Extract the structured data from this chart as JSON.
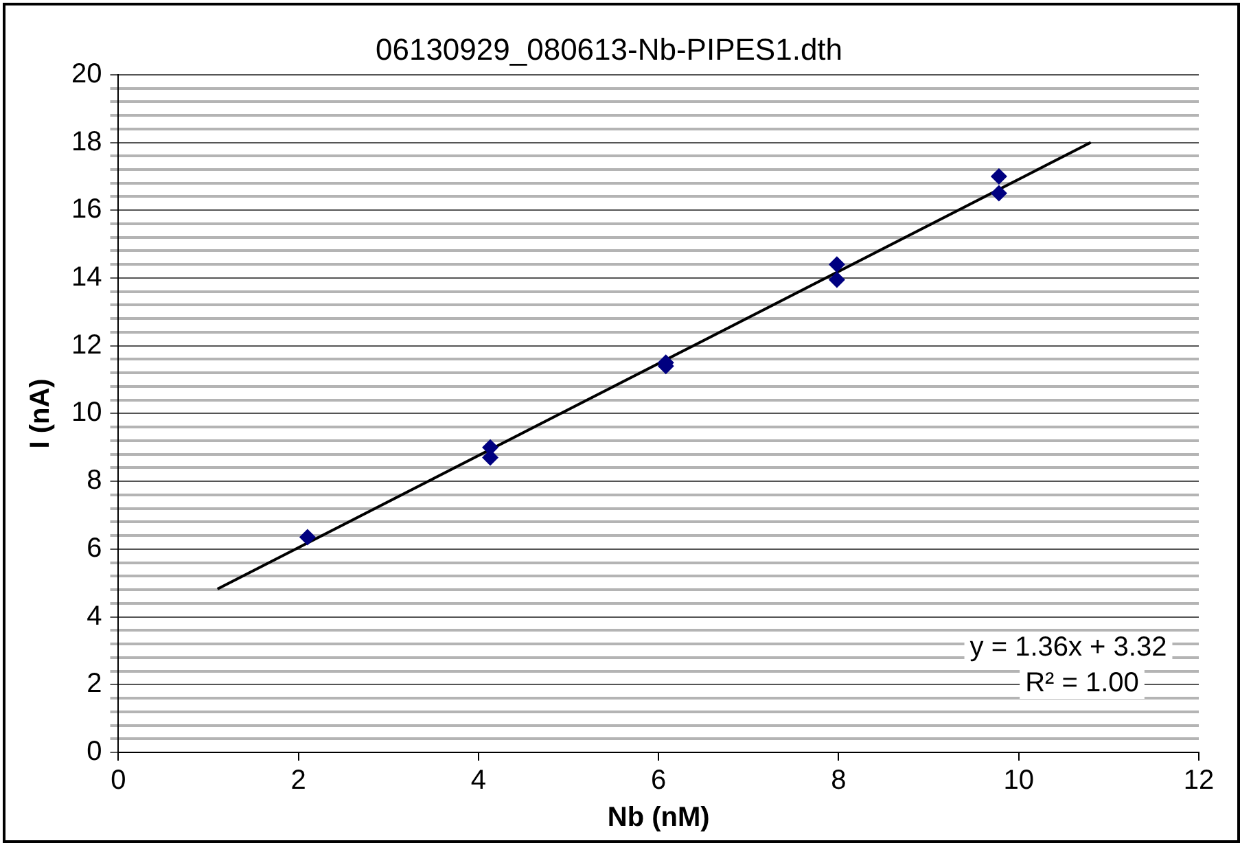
{
  "chart_data": {
    "type": "scatter",
    "title": "06130929_080613-Nb-PIPES1.dth",
    "xlabel": "Nb (nM)",
    "ylabel": "I (nA)",
    "xlim": [
      0,
      12
    ],
    "xticks": [
      0,
      2,
      4,
      6,
      8,
      10,
      12
    ],
    "ylim": [
      0,
      20
    ],
    "yticks": [
      0,
      {
        "value": 0.4,
        "label": null
      },
      {
        "value": 0.8,
        "label": null
      },
      {
        "value": 1.2,
        "label": null
      },
      {
        "value": 1.6,
        "label": null
      },
      2,
      {
        "value": 2.4,
        "label": null
      },
      {
        "value": 2.8,
        "label": null
      },
      {
        "value": 3.2,
        "label": null
      },
      {
        "value": 3.6,
        "label": null
      },
      4,
      {
        "value": 4.4,
        "label": null
      },
      {
        "value": 4.8,
        "label": null
      },
      {
        "value": 5.2,
        "label": null
      },
      {
        "value": 5.6,
        "label": null
      },
      6,
      {
        "value": 6.4,
        "label": null
      },
      {
        "value": 6.8,
        "label": null
      },
      {
        "value": 7.2,
        "label": null
      },
      {
        "value": 7.6,
        "label": null
      },
      8,
      {
        "value": 8.4,
        "label": null
      },
      {
        "value": 8.8,
        "label": null
      },
      {
        "value": 9.2,
        "label": null
      },
      {
        "value": 9.6,
        "label": null
      },
      10,
      {
        "value": 10.4,
        "label": null
      },
      {
        "value": 10.8,
        "label": null
      },
      {
        "value": 11.2,
        "label": null
      },
      {
        "value": 11.6,
        "label": null
      },
      12,
      {
        "value": 12.4,
        "label": null
      },
      {
        "value": 12.8,
        "label": null
      },
      {
        "value": 13.2,
        "label": null
      },
      {
        "value": 13.6,
        "label": null
      },
      14,
      {
        "value": 14.4,
        "label": null
      },
      {
        "value": 14.8,
        "label": null
      },
      {
        "value": 15.2,
        "label": null
      },
      {
        "value": 15.6,
        "label": null
      },
      16,
      {
        "value": 16.4,
        "label": null
      },
      {
        "value": 16.8,
        "label": null
      },
      {
        "value": 17.2,
        "label": null
      },
      {
        "value": 17.6,
        "label": null
      },
      18,
      {
        "value": 18.4,
        "label": null
      },
      {
        "value": 18.8,
        "label": null
      },
      {
        "value": 19.2,
        "label": null
      },
      {
        "value": 19.6,
        "label": null
      },
      20
    ],
    "grid": "y",
    "legend": false,
    "marker": "diamond",
    "series": [
      {
        "color": "#000080",
        "x": [
          2.1,
          4.13,
          4.13,
          6.08,
          6.08,
          7.98,
          7.98,
          9.78,
          9.78
        ],
        "values": [
          6.35,
          9.0,
          8.7,
          11.5,
          11.4,
          14.4,
          13.95,
          17.0,
          16.5
        ]
      },
      {
        "type": "line",
        "color": "#000000",
        "marker": "none",
        "line_style": "solid",
        "x": [
          1.1,
          10.8
        ],
        "values": [
          4.82,
          18.0
        ]
      }
    ],
    "annotations": [
      "y = 1.36x + 3.32",
      "R² = 1.00"
    ]
  }
}
